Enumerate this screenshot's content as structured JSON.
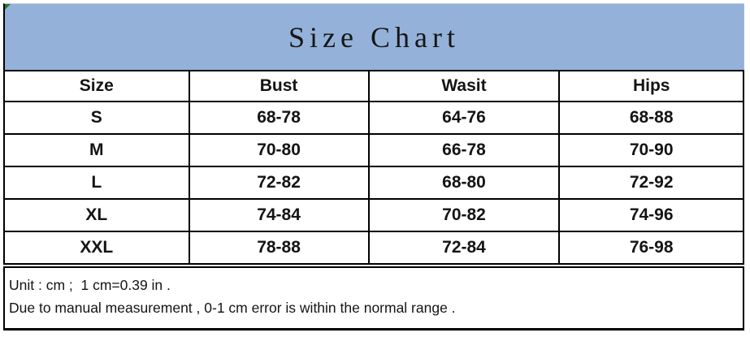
{
  "chart_data": {
    "type": "table",
    "title": "Size Chart",
    "columns": [
      "Size",
      "Bust",
      "Wasit",
      "Hips"
    ],
    "rows": [
      [
        "S",
        "68-78",
        "64-76",
        "68-88"
      ],
      [
        "M",
        "70-80",
        "66-78",
        "70-90"
      ],
      [
        "L",
        "72-82",
        "68-80",
        "72-92"
      ],
      [
        "XL",
        "74-84",
        "70-82",
        "74-96"
      ],
      [
        "XXL",
        "78-88",
        "72-84",
        "76-98"
      ]
    ],
    "unit": "cm",
    "footnotes": [
      "Unit : cm ;  1 cm=0.39 in .",
      "Due to manual measurement , 0-1 cm error is within the normal range ."
    ]
  },
  "colors": {
    "banner_background": "#94B2D9",
    "table_border": "#000000",
    "text": "#141414",
    "corner_marker_green": "#1F7A2D"
  }
}
